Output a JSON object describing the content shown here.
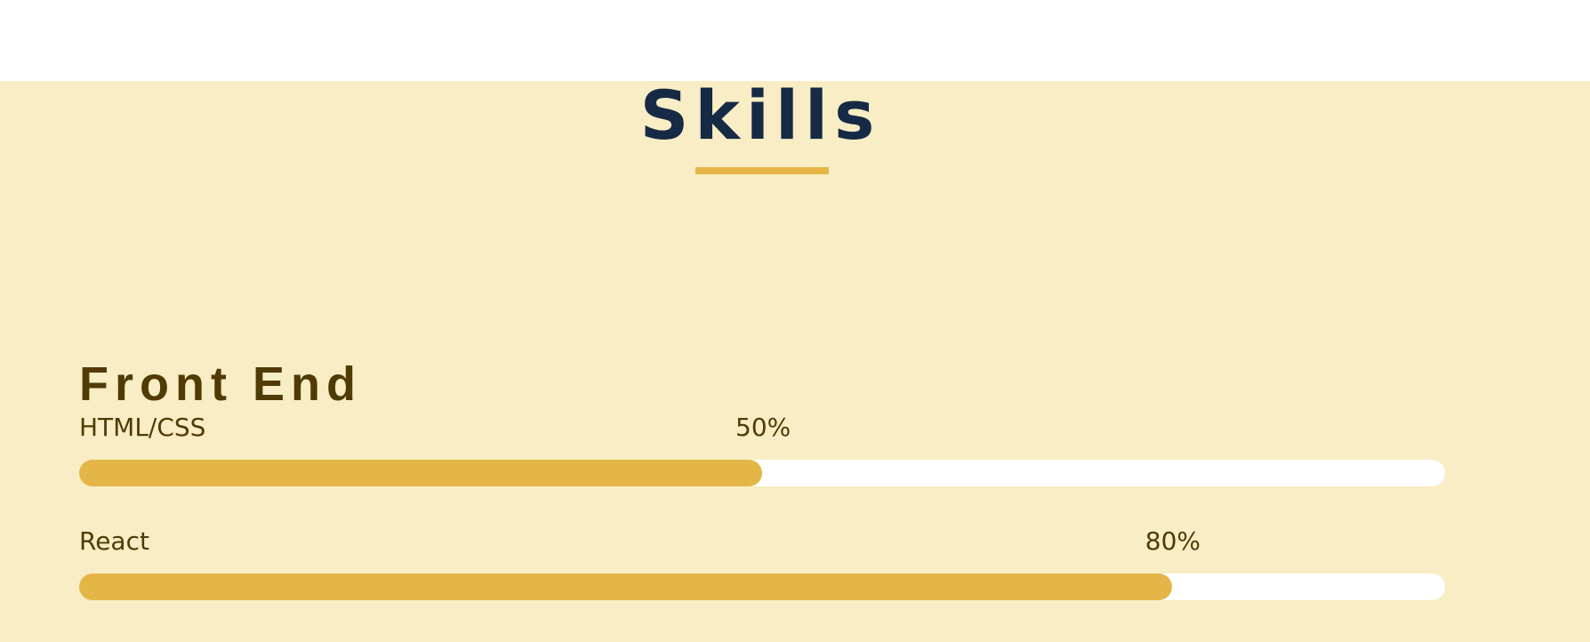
{
  "section": {
    "title": "Skills",
    "accent_color": "#e4b647",
    "background_color": "#f9edc5"
  },
  "group": {
    "title": "Front End",
    "skills": [
      {
        "label": "HTML/CSS",
        "percent_label": "50%",
        "level": 0.5
      },
      {
        "label": "React",
        "percent_label": "80%",
        "level": 0.8
      }
    ]
  }
}
